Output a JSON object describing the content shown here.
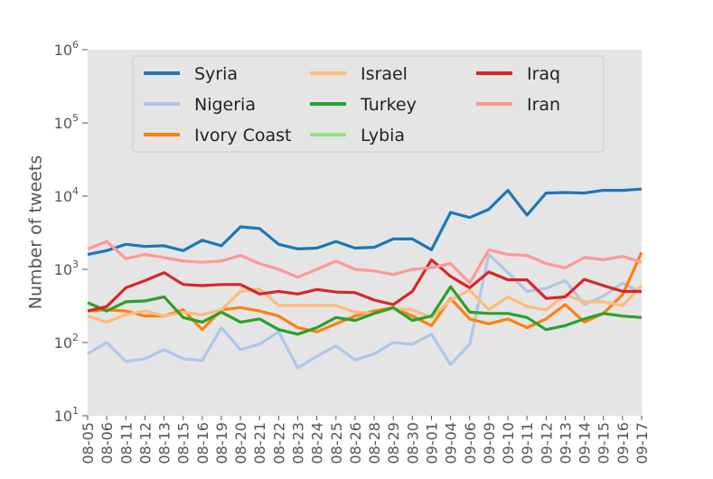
{
  "chart_data": {
    "type": "line",
    "y_label": "Number of tweets",
    "log_y": true,
    "grid": false,
    "legend_position": "upper center",
    "categories": [
      "08-05",
      "08-06",
      "08-11",
      "08-12",
      "08-13",
      "08-15",
      "08-16",
      "08-19",
      "08-20",
      "08-21",
      "08-22",
      "08-23",
      "08-24",
      "08-25",
      "08-26",
      "08-28",
      "08-29",
      "08-30",
      "09-01",
      "09-04",
      "09-06",
      "09-09",
      "09-10",
      "09-11",
      "09-12",
      "09-13",
      "09-14",
      "09-15",
      "09-16",
      "09-17"
    ],
    "ylim": [
      10,
      1000000
    ],
    "yticks": [
      {
        "value": 10,
        "label": "10^1"
      },
      {
        "value": 100,
        "label": "10^2"
      },
      {
        "value": 1000,
        "label": "10^3"
      },
      {
        "value": 10000,
        "label": "10^4"
      },
      {
        "value": 100000,
        "label": "10^5"
      },
      {
        "value": 1000000,
        "label": "10^6"
      }
    ],
    "series": [
      {
        "name": "Syria",
        "color": "#1f77b4",
        "values": [
          1600,
          1800,
          2200,
          2050,
          2100,
          1800,
          2500,
          2100,
          3800,
          3600,
          2200,
          1900,
          1950,
          2400,
          1950,
          2000,
          2600,
          2600,
          1850,
          6000,
          5100,
          6600,
          12000,
          5500,
          11000,
          11200,
          11000,
          12000,
          12000,
          12500
        ]
      },
      {
        "name": "Nigeria",
        "color": "#aec7e8",
        "values": [
          70,
          100,
          55,
          60,
          80,
          60,
          57,
          160,
          80,
          95,
          140,
          45,
          65,
          90,
          58,
          70,
          100,
          95,
          130,
          50,
          95,
          1600,
          900,
          500,
          550,
          700,
          330,
          430,
          650,
          480
        ]
      },
      {
        "name": "Ivory Coast",
        "color": "#ff7f0e",
        "values": [
          270,
          280,
          270,
          230,
          230,
          280,
          150,
          280,
          300,
          270,
          230,
          160,
          140,
          180,
          230,
          270,
          300,
          230,
          170,
          400,
          210,
          180,
          210,
          160,
          210,
          330,
          190,
          250,
          450,
          1700
        ]
      },
      {
        "name": "Israel",
        "color": "#ffbb78",
        "values": [
          230,
          190,
          240,
          270,
          230,
          260,
          240,
          280,
          500,
          540,
          320,
          320,
          320,
          320,
          260,
          250,
          290,
          280,
          220,
          380,
          520,
          280,
          420,
          310,
          280,
          450,
          360,
          360,
          320,
          600
        ]
      },
      {
        "name": "Turkey",
        "color": "#2ca02c",
        "values": [
          350,
          270,
          360,
          370,
          420,
          220,
          190,
          260,
          190,
          210,
          150,
          130,
          160,
          220,
          200,
          250,
          300,
          200,
          230,
          580,
          260,
          250,
          250,
          220,
          150,
          170,
          210,
          250,
          230,
          220
        ]
      },
      {
        "name": "Lybia",
        "color": "#98df8a",
        "values": [
          null,
          null,
          null,
          null,
          null,
          null,
          null,
          null,
          null,
          null,
          null,
          null,
          null,
          null,
          null,
          null,
          null,
          null,
          null,
          null,
          null,
          null,
          null,
          null,
          null,
          null,
          null,
          null,
          null,
          null
        ]
      },
      {
        "name": "Iraq",
        "color": "#d62728",
        "values": [
          270,
          310,
          560,
          700,
          900,
          620,
          600,
          620,
          620,
          460,
          500,
          460,
          530,
          490,
          480,
          380,
          330,
          500,
          1350,
          800,
          560,
          920,
          720,
          720,
          400,
          420,
          730,
          600,
          500,
          500
        ]
      },
      {
        "name": "Iran",
        "color": "#ff9896",
        "values": [
          1900,
          2400,
          1400,
          1600,
          1450,
          1300,
          1250,
          1300,
          1550,
          1200,
          1000,
          780,
          1000,
          1300,
          1000,
          950,
          850,
          1000,
          1050,
          1200,
          650,
          1850,
          1600,
          1550,
          1200,
          1050,
          1450,
          1350,
          1500,
          1250
        ]
      }
    ]
  }
}
